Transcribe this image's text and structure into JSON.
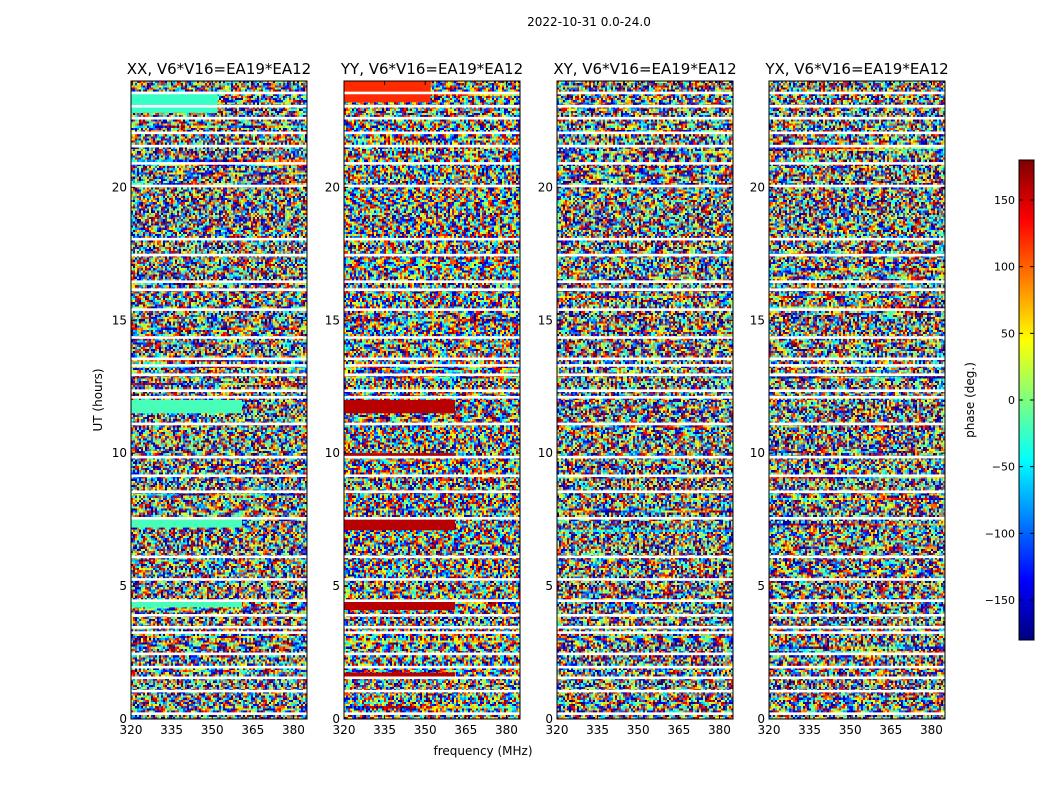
{
  "figure_title": "2022-10-31 0.0-24.0",
  "chart_data": {
    "type": "heatmap",
    "xlabel": "frequency (MHz)",
    "ylabel": "UT (hours)",
    "xlim": [
      320,
      385
    ],
    "ylim": [
      0,
      24
    ],
    "x_ticks": [
      320,
      335,
      350,
      365,
      380
    ],
    "y_ticks": [
      0,
      5,
      10,
      15,
      20
    ],
    "colorbar": {
      "label": "phase (deg.)",
      "range": [
        -180,
        180
      ],
      "ticks": [
        150,
        100,
        50,
        0,
        -50,
        -100,
        -150
      ],
      "tick_labels": [
        "150",
        "100",
        "50",
        "0",
        "−50",
        "−100",
        "−150"
      ],
      "colors": [
        "#00007f",
        "#0000ff",
        "#007fff",
        "#00ffff",
        "#7fff7f",
        "#ffff00",
        "#ff7f00",
        "#ff0000",
        "#7f0000"
      ]
    },
    "flagged_utc_hours": [
      0.2,
      1.05,
      1.55,
      1.95,
      2.45,
      3.25,
      3.45,
      3.9,
      4.45,
      5.25,
      6.1,
      7.55,
      8.55,
      9.15,
      9.85,
      11.1,
      12.1,
      12.35,
      12.95,
      13.3,
      13.55,
      14.35,
      15.4,
      16.15,
      16.45,
      17.45,
      18.05,
      20.05,
      20.9,
      21.55,
      22.05,
      22.6,
      23.05,
      23.55
    ],
    "panels": [
      {
        "title": "XX, V6*V16=EA19*EA12",
        "coherent_bands": [
          {
            "ut_range": [
              4.2,
              4.5
            ],
            "freq_range": [
              320,
              361
            ],
            "phase_deg": -20
          },
          {
            "ut_range": [
              7.2,
              7.6
            ],
            "freq_range": [
              320,
              361
            ],
            "phase_deg": -20
          },
          {
            "ut_range": [
              11.5,
              12.0
            ],
            "freq_range": [
              320,
              361
            ],
            "phase_deg": -20
          },
          {
            "ut_range": [
              22.8,
              23.6
            ],
            "freq_range": [
              320,
              352
            ],
            "phase_deg": -25
          }
        ]
      },
      {
        "title": "YY, V6*V16=EA19*EA12",
        "coherent_bands": [
          {
            "ut_range": [
              1.55,
              1.75
            ],
            "freq_range": [
              320,
              361
            ],
            "phase_deg": 160
          },
          {
            "ut_range": [
              4.1,
              4.5
            ],
            "freq_range": [
              320,
              361
            ],
            "phase_deg": 160
          },
          {
            "ut_range": [
              7.1,
              7.5
            ],
            "freq_range": [
              320,
              361
            ],
            "phase_deg": 160
          },
          {
            "ut_range": [
              9.8,
              10.0
            ],
            "freq_range": [
              320,
              361
            ],
            "phase_deg": 160
          },
          {
            "ut_range": [
              11.5,
              12.0
            ],
            "freq_range": [
              320,
              361
            ],
            "phase_deg": 160
          },
          {
            "ut_range": [
              23.2,
              24.0
            ],
            "freq_range": [
              320,
              352
            ],
            "phase_deg": 120
          }
        ]
      },
      {
        "title": "XY, V6*V16=EA19*EA12",
        "coherent_bands": []
      },
      {
        "title": "YX, V6*V16=EA19*EA12",
        "coherent_bands": []
      }
    ]
  }
}
